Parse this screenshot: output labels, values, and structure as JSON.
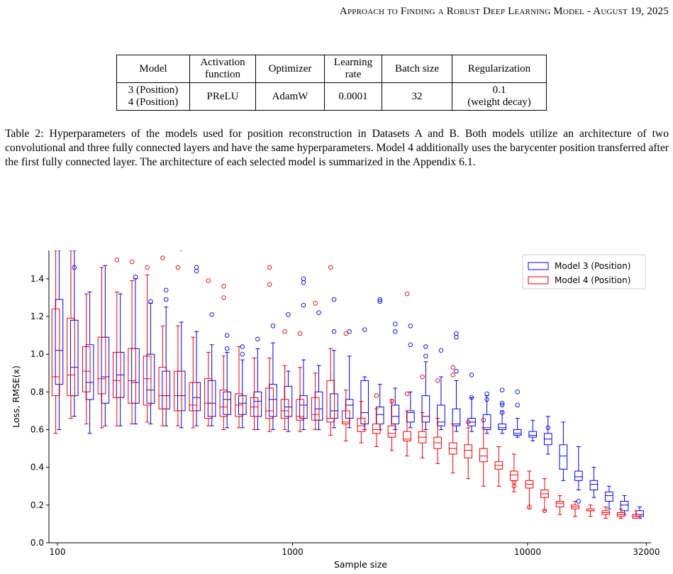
{
  "header": {
    "title": "Approach to Finding a Robust Deep Learning Model - August 19, 2025"
  },
  "table": {
    "headers": [
      "Model",
      "Activation function",
      "Optimizer",
      "Learning rate",
      "Batch size",
      "Regularization"
    ],
    "rows": [
      {
        "model": "3 (Position)\n4 (Position)",
        "activation": "PReLU",
        "optimizer": "AdamW",
        "lr": "0.0001",
        "batch": "32",
        "reg": "0.1\n(weight decay)"
      }
    ]
  },
  "caption": "Table 2: Hyperparameters of the models used for position reconstruction in Datasets A and B. Both models utilize an architecture of two convolutional and three fully connected layers and have the same hyperparameters. Model 4 additionally uses the barycenter position transferred after the first fully connected layer. The architecture of each selected model is summarized in the Appendix 6.1.",
  "chart_data": {
    "type": "box",
    "xlabel": "Sample size",
    "ylabel": "Loss, RMSE(x)",
    "xscale": "log",
    "xlim": [
      92,
      33500
    ],
    "ylim": [
      0.0,
      1.55
    ],
    "xticks": [
      "100",
      "1000",
      "10000",
      "32000"
    ],
    "yticks": [
      "0.0",
      "0.2",
      "0.4",
      "0.6",
      "0.8",
      "1.0",
      "1.2",
      "1.4"
    ],
    "legend_position": "top-right",
    "colors": {
      "model3": "#0000ee",
      "model4": "#ee0000"
    },
    "x": [
      100,
      116,
      135,
      157,
      182,
      211,
      245,
      285,
      331,
      384,
      446,
      518,
      602,
      699,
      812,
      943,
      1095,
      1272,
      1477,
      1716,
      1993,
      2315,
      2689,
      3123,
      3627,
      4213,
      4893,
      5683,
      6601,
      7667,
      8905,
      10343,
      12013,
      13953,
      16206,
      18823,
      21863,
      25394,
      29494
    ],
    "series": [
      {
        "name": "Model 3 (Position)",
        "color": "#0000ee",
        "median": [
          1.02,
          0.93,
          0.85,
          0.88,
          0.89,
          0.85,
          0.81,
          0.78,
          0.78,
          0.77,
          0.74,
          0.76,
          0.74,
          0.75,
          0.76,
          0.72,
          0.73,
          0.71,
          0.7,
          0.73,
          0.69,
          0.68,
          0.67,
          0.69,
          0.67,
          0.64,
          0.63,
          0.64,
          0.61,
          0.61,
          0.58,
          0.57,
          0.55,
          0.46,
          0.35,
          0.31,
          0.25,
          0.2,
          0.15
        ],
        "q1": [
          0.84,
          0.78,
          0.76,
          0.74,
          0.77,
          0.74,
          0.74,
          0.71,
          0.7,
          0.7,
          0.67,
          0.68,
          0.68,
          0.67,
          0.67,
          0.67,
          0.66,
          0.65,
          0.66,
          0.66,
          0.63,
          0.63,
          0.63,
          0.64,
          0.64,
          0.62,
          0.62,
          0.62,
          0.6,
          0.6,
          0.57,
          0.56,
          0.52,
          0.39,
          0.33,
          0.28,
          0.22,
          0.17,
          0.14
        ],
        "q3": [
          1.29,
          1.18,
          1.05,
          1.09,
          1.01,
          1.03,
          1.0,
          0.91,
          0.91,
          0.85,
          0.86,
          0.8,
          0.78,
          0.8,
          0.84,
          0.83,
          0.78,
          0.8,
          0.79,
          0.76,
          0.86,
          0.72,
          0.73,
          0.7,
          0.78,
          0.73,
          0.71,
          0.66,
          0.68,
          0.63,
          0.6,
          0.59,
          0.58,
          0.52,
          0.38,
          0.33,
          0.27,
          0.22,
          0.17
        ],
        "wlo": [
          0.6,
          0.67,
          0.58,
          0.62,
          0.62,
          0.63,
          0.63,
          0.62,
          0.61,
          0.62,
          0.62,
          0.61,
          0.61,
          0.6,
          0.6,
          0.59,
          0.6,
          0.6,
          0.61,
          0.61,
          0.6,
          0.6,
          0.6,
          0.61,
          0.6,
          0.6,
          0.59,
          0.59,
          0.58,
          0.58,
          0.56,
          0.54,
          0.47,
          0.33,
          0.28,
          0.24,
          0.18,
          0.15,
          0.13
        ],
        "whi": [
          1.55,
          1.55,
          1.33,
          1.47,
          1.32,
          1.4,
          1.27,
          1.25,
          1.17,
          1.12,
          1.05,
          1.01,
          0.97,
          1.03,
          1.06,
          0.91,
          0.97,
          0.94,
          1.02,
          0.99,
          0.88,
          0.84,
          0.82,
          0.8,
          0.96,
          0.88,
          0.86,
          0.77,
          0.78,
          0.7,
          0.66,
          0.65,
          0.67,
          0.64,
          0.51,
          0.4,
          0.3,
          0.25,
          0.19
        ]
      },
      {
        "name": "Model 4 (Position)",
        "color": "#ee0000",
        "median": [
          0.88,
          0.89,
          0.91,
          0.87,
          0.86,
          0.86,
          0.87,
          0.78,
          0.78,
          0.73,
          0.74,
          0.72,
          0.73,
          0.72,
          0.7,
          0.7,
          0.67,
          0.68,
          0.66,
          0.64,
          0.62,
          0.6,
          0.58,
          0.55,
          0.56,
          0.53,
          0.5,
          0.49,
          0.46,
          0.41,
          0.36,
          0.31,
          0.26,
          0.21,
          0.19,
          0.17,
          0.16,
          0.15,
          0.14
        ],
        "q1": [
          0.78,
          0.78,
          0.8,
          0.79,
          0.77,
          0.74,
          0.73,
          0.71,
          0.7,
          0.7,
          0.66,
          0.67,
          0.67,
          0.67,
          0.66,
          0.66,
          0.65,
          0.65,
          0.64,
          0.63,
          0.59,
          0.58,
          0.56,
          0.54,
          0.53,
          0.5,
          0.47,
          0.45,
          0.43,
          0.39,
          0.33,
          0.29,
          0.24,
          0.19,
          0.18,
          0.17,
          0.15,
          0.14,
          0.13
        ],
        "q3": [
          1.24,
          1.19,
          1.04,
          1.09,
          1.01,
          1.03,
          0.99,
          0.93,
          0.91,
          0.85,
          0.87,
          0.81,
          0.79,
          0.77,
          0.82,
          0.76,
          0.76,
          0.77,
          0.86,
          0.7,
          0.66,
          0.63,
          0.62,
          0.59,
          0.59,
          0.56,
          0.53,
          0.52,
          0.5,
          0.43,
          0.38,
          0.33,
          0.28,
          0.22,
          0.2,
          0.18,
          0.17,
          0.16,
          0.15
        ],
        "wlo": [
          0.58,
          0.66,
          0.63,
          0.61,
          0.62,
          0.63,
          0.64,
          0.62,
          0.62,
          0.61,
          0.62,
          0.6,
          0.61,
          0.6,
          0.59,
          0.6,
          0.59,
          0.6,
          0.57,
          0.54,
          0.53,
          0.51,
          0.49,
          0.46,
          0.45,
          0.42,
          0.37,
          0.34,
          0.3,
          0.3,
          0.27,
          0.18,
          0.17,
          0.15,
          0.14,
          0.14,
          0.13,
          0.13,
          0.13
        ],
        "whi": [
          1.55,
          1.55,
          1.32,
          1.46,
          1.33,
          1.39,
          1.42,
          1.15,
          1.15,
          1.09,
          1.01,
          0.99,
          1.04,
          0.98,
          0.98,
          0.94,
          0.93,
          0.9,
          1.03,
          0.81,
          0.75,
          0.71,
          0.76,
          0.7,
          0.69,
          0.66,
          0.63,
          0.61,
          0.61,
          0.51,
          0.47,
          0.38,
          0.34,
          0.25,
          0.22,
          0.2,
          0.19,
          0.18,
          0.17
        ]
      }
    ],
    "outliers": [
      {
        "series": "Model 3 (Position)",
        "points": [
          [
            116,
            1.46
          ],
          [
            211,
            1.41
          ],
          [
            245,
            1.28
          ],
          [
            285,
            1.34
          ],
          [
            285,
            1.29
          ],
          [
            331,
            1.56
          ],
          [
            384,
            1.46
          ],
          [
            384,
            1.44
          ],
          [
            446,
            1.21
          ],
          [
            518,
            1.1
          ],
          [
            518,
            1.03
          ],
          [
            602,
            1.0
          ],
          [
            602,
            1.04
          ],
          [
            699,
            1.08
          ],
          [
            812,
            1.15
          ],
          [
            943,
            1.21
          ],
          [
            1095,
            1.38
          ],
          [
            1095,
            1.4
          ],
          [
            1095,
            1.26
          ],
          [
            1272,
            1.22
          ],
          [
            1477,
            1.29
          ],
          [
            1477,
            1.12
          ],
          [
            1716,
            1.12
          ],
          [
            1993,
            1.13
          ],
          [
            2315,
            1.29
          ],
          [
            2315,
            1.28
          ],
          [
            2689,
            1.16
          ],
          [
            2689,
            1.12
          ],
          [
            3123,
            1.15
          ],
          [
            3123,
            1.05
          ],
          [
            3627,
            1.04
          ],
          [
            3627,
            0.99
          ],
          [
            4213,
            1.02
          ],
          [
            4893,
            1.11
          ],
          [
            4893,
            1.09
          ],
          [
            4893,
            0.91
          ],
          [
            5683,
            0.89
          ],
          [
            5683,
            0.77
          ],
          [
            6601,
            0.79
          ],
          [
            6601,
            0.76
          ],
          [
            7667,
            0.81
          ],
          [
            7667,
            0.74
          ],
          [
            7667,
            0.73
          ],
          [
            7667,
            0.69
          ],
          [
            8905,
            0.8
          ],
          [
            8905,
            0.73
          ],
          [
            12013,
            0.61
          ],
          [
            16206,
            0.22
          ]
        ]
      },
      {
        "series": "Model 4 (Position)",
        "points": [
          [
            182,
            1.5
          ],
          [
            211,
            1.49
          ],
          [
            245,
            1.46
          ],
          [
            285,
            1.51
          ],
          [
            331,
            1.46
          ],
          [
            446,
            1.39
          ],
          [
            518,
            1.36
          ],
          [
            518,
            1.3
          ],
          [
            812,
            1.46
          ],
          [
            812,
            1.37
          ],
          [
            943,
            1.12
          ],
          [
            1095,
            1.11
          ],
          [
            1272,
            1.27
          ],
          [
            1477,
            1.46
          ],
          [
            1716,
            1.11
          ],
          [
            2315,
            0.78
          ],
          [
            2689,
            0.75
          ],
          [
            3123,
            1.32
          ],
          [
            3123,
            0.79
          ],
          [
            3627,
            0.88
          ],
          [
            4213,
            0.86
          ],
          [
            4893,
            0.93
          ],
          [
            4893,
            0.89
          ],
          [
            5683,
            0.64
          ],
          [
            6601,
            0.65
          ],
          [
            8905,
            0.32
          ],
          [
            8905,
            0.3
          ],
          [
            10343,
            0.19
          ],
          [
            12013,
            0.17
          ]
        ]
      }
    ]
  }
}
